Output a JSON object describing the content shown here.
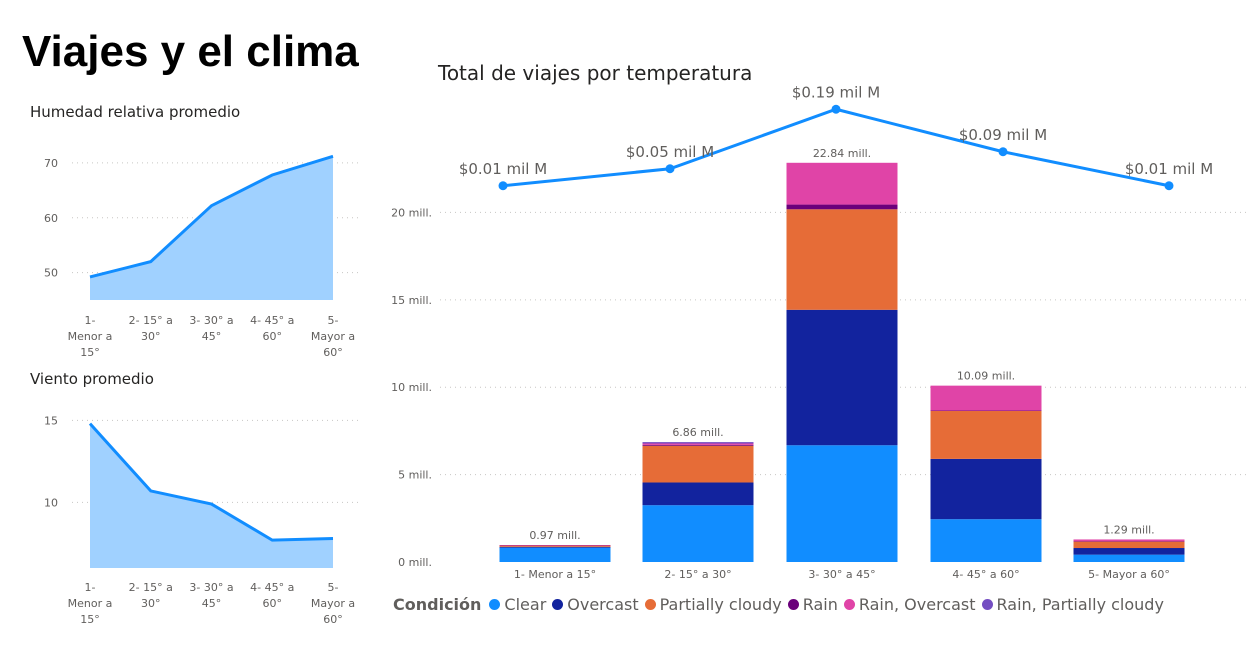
{
  "page_title": "Viajes y el clima",
  "categories_wrapped": [
    [
      "1-",
      "Menor a",
      "15°"
    ],
    [
      "2- 15° a",
      "30°"
    ],
    [
      "3- 30° a",
      "45°"
    ],
    [
      "4- 45° a",
      "60°"
    ],
    [
      "5-",
      "Mayor a",
      "60°"
    ]
  ],
  "colors": {
    "area_fill": "#a0d1ff",
    "area_line": "#118dff",
    "Clear": "#118dff",
    "Overcast": "#12239e",
    "Partially cloudy": "#e66c37",
    "Rain": "#6b007b",
    "Rain, Overcast": "#e044a7",
    "Rain, Partially cloudy": "#744ec2"
  },
  "chart_data": [
    {
      "type": "area",
      "title": "Humedad relativa promedio",
      "categories": [
        "1- Menor a 15°",
        "2- 15° a 30°",
        "3- 30° a 45°",
        "4- 45° a 60°",
        "5- Mayor a 60°"
      ],
      "values": [
        49.2,
        52.0,
        62.2,
        67.8,
        71.2
      ],
      "y_ticks": [
        50,
        60,
        70
      ],
      "ylim": [
        45,
        74
      ],
      "grid": true
    },
    {
      "type": "area",
      "title": "Viento promedio",
      "categories": [
        "1- Menor a 15°",
        "2- 15° a 30°",
        "3- 30° a 45°",
        "4- 45° a 60°",
        "5- Mayor a 60°"
      ],
      "values": [
        14.8,
        10.7,
        9.9,
        7.7,
        7.8
      ],
      "y_ticks": [
        10,
        15
      ],
      "ylim": [
        6,
        16
      ],
      "grid": true
    },
    {
      "type": "bar",
      "stacked": true,
      "title": "Total de viajes por temperatura",
      "categories": [
        "1- Menor a 15°",
        "2- 15° a 30°",
        "3- 30° a 45°",
        "4- 45° a 60°",
        "5- Mayor a 60°"
      ],
      "y_ticks": [
        {
          "value": 0,
          "label": "0 mill."
        },
        {
          "value": 5,
          "label": "5 mill."
        },
        {
          "value": 10,
          "label": "10 mill."
        },
        {
          "value": 15,
          "label": "15 mill."
        },
        {
          "value": 20,
          "label": "20 mill."
        }
      ],
      "ylim": [
        0,
        23
      ],
      "unit": "millions",
      "legend_title": "Condición",
      "legend_position": "bottom-left",
      "series": [
        {
          "name": "Clear",
          "values": [
            0.82,
            3.25,
            6.68,
            2.45,
            0.42
          ]
        },
        {
          "name": "Overcast",
          "values": [
            0.05,
            1.3,
            7.75,
            3.45,
            0.38
          ]
        },
        {
          "name": "Partially cloudy",
          "values": [
            0.08,
            2.1,
            5.75,
            2.75,
            0.38
          ]
        },
        {
          "name": "Rain",
          "values": [
            0.01,
            0.05,
            0.27,
            0.02,
            0.01
          ]
        },
        {
          "name": "Rain, Overcast",
          "values": [
            0.01,
            0.08,
            2.39,
            1.42,
            0.1
          ]
        },
        {
          "name": "Rain, Partially cloudy",
          "values": [
            0.0,
            0.08,
            0.0,
            0.0,
            0.0
          ]
        }
      ],
      "totals": [
        0.97,
        6.86,
        22.84,
        10.09,
        1.29
      ],
      "total_labels": [
        "0.97 mill.",
        "6.86 mill.",
        "22.84 mill.",
        "10.09 mill.",
        "1.29 mill."
      ],
      "line_series": {
        "values": [
          0.01,
          0.05,
          0.19,
          0.09,
          0.01
        ],
        "labels": [
          "$0.01 mil M",
          "$0.05 mil M",
          "$0.19 mil M",
          "$0.09 mil M",
          "$0.01 mil M"
        ],
        "ylim": [
          0,
          0.2
        ],
        "color": "#118dff"
      }
    }
  ]
}
